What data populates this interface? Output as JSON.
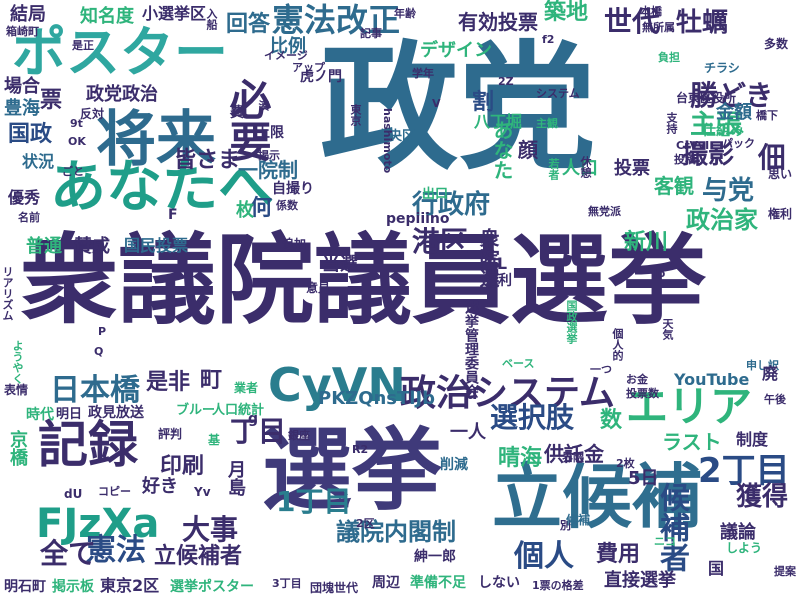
{
  "words": [
    {
      "text": "政党",
      "color": "#2e6b8e"
    },
    {
      "text": "衆議院議員選挙",
      "color": "#3b2d6b"
    },
    {
      "text": "選挙",
      "color": "#3f3a7a"
    },
    {
      "text": "立候補",
      "color": "#2f6e8f"
    },
    {
      "text": "将来",
      "color": "#2e6b8e"
    },
    {
      "text": "あなたへ",
      "color": "#1f9e89"
    },
    {
      "text": "ポスター",
      "color": "#2fa7a0"
    },
    {
      "text": "憲法改正",
      "color": "#2e6b8e"
    },
    {
      "text": "CyVN",
      "color": "#2a7d8e"
    },
    {
      "text": "FJzXa",
      "color": "#1f9e89"
    },
    {
      "text": "記録",
      "color": "#3b2d6b"
    },
    {
      "text": "エリア",
      "color": "#2fb47c"
    },
    {
      "text": "政治システム",
      "color": "#3b2d6b"
    },
    {
      "text": "必要",
      "color": "#3b2d6b"
    },
    {
      "text": "日本橋",
      "color": "#2e6b8e"
    },
    {
      "text": "選択肢",
      "color": "#2a4b85"
    },
    {
      "text": "憲法",
      "color": "#2a4b85"
    },
    {
      "text": "行政府",
      "color": "#2e6b8e"
    },
    {
      "text": "勝どき",
      "color": "#3b2d6b"
    },
    {
      "text": "主張",
      "color": "#2fb47c"
    },
    {
      "text": "撮影",
      "color": "#3b2d6b"
    },
    {
      "text": "与党",
      "color": "#2e6b8e"
    },
    {
      "text": "政治家",
      "color": "#2fb47c"
    },
    {
      "text": "港区",
      "color": "#3b2d6b"
    },
    {
      "text": "新川",
      "color": "#2fb47c"
    },
    {
      "text": "1丁目",
      "color": "#2a7d8e"
    },
    {
      "text": "2丁目",
      "color": "#2a4b85"
    },
    {
      "text": "丁目",
      "color": "#3b2d6b"
    },
    {
      "text": "全て",
      "color": "#3b2d6b"
    },
    {
      "text": "大事",
      "color": "#3b2d6b"
    },
    {
      "text": "印刷",
      "color": "#3b2d6b"
    },
    {
      "text": "個人",
      "color": "#2a4b85"
    },
    {
      "text": "候補者",
      "color": "#2a4b85"
    },
    {
      "text": "獲得",
      "color": "#3b2d6b"
    },
    {
      "text": "費用",
      "color": "#3b2d6b"
    },
    {
      "text": "議院内閣制",
      "color": "#2e6b8e"
    },
    {
      "text": "立候補者",
      "color": "#3b2d6b"
    },
    {
      "text": "世代",
      "color": "#3b2d6b"
    },
    {
      "text": "牡蠣",
      "color": "#3b2d6b"
    },
    {
      "text": "築地",
      "color": "#2fb47c"
    },
    {
      "text": "有効投票",
      "color": "#3b2d6b"
    },
    {
      "text": "皆さま",
      "color": "#3b2d6b"
    },
    {
      "text": "回答",
      "color": "#2e6b8e"
    },
    {
      "text": "一院制",
      "color": "#2e6b8e"
    },
    {
      "text": "比例",
      "color": "#2e6b8e"
    },
    {
      "text": "国政",
      "color": "#2a4b85"
    },
    {
      "text": "政党政治",
      "color": "#3b2d6b"
    },
    {
      "text": "佃",
      "color": "#3b2d6b"
    },
    {
      "text": "顔",
      "color": "#3b2d6b"
    },
    {
      "text": "割",
      "color": "#2a4b85"
    },
    {
      "text": "あなた",
      "color": "#2fb47c"
    },
    {
      "text": "投票",
      "color": "#3b2d6b"
    },
    {
      "text": "人口",
      "color": "#2fb47c"
    },
    {
      "text": "客観",
      "color": "#2fb47c"
    },
    {
      "text": "PKZQnsTlJb",
      "color": "#2e6b8e"
    },
    {
      "text": "衆院選",
      "color": "#3b2d6b"
    },
    {
      "text": "当選",
      "color": "#3b2d6b"
    },
    {
      "text": "一人",
      "color": "#3b2d6b"
    },
    {
      "text": "数",
      "color": "#2fb47c"
    },
    {
      "text": "晴海",
      "color": "#2fb47c"
    },
    {
      "text": "供託金",
      "color": "#3b2d6b"
    },
    {
      "text": "ラスト",
      "color": "#2fb47c"
    },
    {
      "text": "制度",
      "color": "#3b2d6b"
    },
    {
      "text": "YouTube",
      "color": "#2e6b8e"
    },
    {
      "text": "5日",
      "color": "#3b2d6b"
    },
    {
      "text": "議論",
      "color": "#3b2d6b"
    },
    {
      "text": "直接選挙",
      "color": "#3b2d6b"
    },
    {
      "text": "是非",
      "color": "#3b2d6b"
    },
    {
      "text": "町",
      "color": "#3b2d6b"
    },
    {
      "text": "月島",
      "color": "#3b2d6b"
    },
    {
      "text": "好き",
      "color": "#3b2d6b"
    },
    {
      "text": "知名度",
      "color": "#2fb47c"
    },
    {
      "text": "小選挙区",
      "color": "#3b2d6b"
    },
    {
      "text": "結局",
      "color": "#3b2d6b"
    },
    {
      "text": "場合",
      "color": "#3b2d6b"
    },
    {
      "text": "豊海",
      "color": "#2e6b8e"
    },
    {
      "text": "状況",
      "color": "#2e6b8e"
    },
    {
      "text": "優秀",
      "color": "#3b2d6b"
    },
    {
      "text": "普通",
      "color": "#2fb47c"
    },
    {
      "text": "賛成",
      "color": "#3b2d6b"
    },
    {
      "text": "国民投票",
      "color": "#2e6b8e"
    },
    {
      "text": "京橋",
      "color": "#2fb47c"
    },
    {
      "text": "時代",
      "color": "#2fb47c"
    },
    {
      "text": "明日",
      "color": "#3b2d6b"
    },
    {
      "text": "政見放送",
      "color": "#3b2d6b"
    },
    {
      "text": "ブルー",
      "color": "#2fb47c"
    },
    {
      "text": "人口統計",
      "color": "#2fb47c"
    },
    {
      "text": "東京2区",
      "color": "#3b2d6b"
    },
    {
      "text": "選挙ポスター",
      "color": "#2fb47c"
    },
    {
      "text": "掲示板",
      "color": "#2fb47c"
    },
    {
      "text": "明石町",
      "color": "#3b2d6b"
    },
    {
      "text": "団塊世代",
      "color": "#3b2d6b"
    },
    {
      "text": "準備不足",
      "color": "#2fb47c"
    },
    {
      "text": "しない",
      "color": "#3b2d6b"
    },
    {
      "text": "周辺",
      "color": "#3b2d6b"
    },
    {
      "text": "削減",
      "color": "#2e6b8e"
    },
    {
      "text": "紳一郎",
      "color": "#3b2d6b"
    },
    {
      "text": "デザイン",
      "color": "#2fb47c"
    },
    {
      "text": "八丁堀",
      "color": "#2fb47c"
    },
    {
      "text": "不利",
      "color": "#3b2d6b"
    },
    {
      "text": "EL",
      "color": "#3b2d6b"
    },
    {
      "text": "台東区役所",
      "color": "#3b2d6b"
    },
    {
      "text": "金額",
      "color": "#2e6b8e"
    },
    {
      "text": "仕組み",
      "color": "#2fb47c"
    },
    {
      "text": "虎ノ門",
      "color": "#3b2d6b"
    },
    {
      "text": "上限",
      "color": "#3b2d6b"
    },
    {
      "text": "自撮り",
      "color": "#3b2d6b"
    },
    {
      "text": "出口",
      "color": "#2fb47c"
    },
    {
      "text": "pepiiino",
      "color": "#3b2d6b"
    },
    {
      "text": "追加",
      "color": "#3b2d6b"
    },
    {
      "text": "意見",
      "color": "#3b2d6b"
    },
    {
      "text": "中央区",
      "color": "#2e6b8e"
    },
    {
      "text": "反対",
      "color": "#3b2d6b"
    },
    {
      "text": "何",
      "color": "#2a4b85"
    },
    {
      "text": "枚",
      "color": "#2fb47c"
    },
    {
      "text": "票",
      "color": "#3b2d6b"
    },
    {
      "text": "費",
      "color": "#3b2d6b"
    },
    {
      "text": "アップ",
      "color": "#3b2d6b"
    },
    {
      "text": "イメージ",
      "color": "#3b2d6b"
    },
    {
      "text": "入船",
      "color": "#3b2d6b"
    },
    {
      "text": "年齢",
      "color": "#3b2d6b"
    },
    {
      "text": "負担",
      "color": "#2fb47c"
    },
    {
      "text": "チラシ",
      "color": "#2e6b8e"
    },
    {
      "text": "多数",
      "color": "#3b2d6b"
    },
    {
      "text": "本橋",
      "color": "#3b2d6b"
    },
    {
      "text": "無所属",
      "color": "#3b2d6b"
    },
    {
      "text": "記事",
      "color": "#3b2d6b"
    },
    {
      "text": "システム",
      "color": "#3b2d6b"
    },
    {
      "text": "学年",
      "color": "#3b2d6b"
    },
    {
      "text": "橋下",
      "color": "#3b2d6b"
    },
    {
      "text": "支持",
      "color": "#3b2d6b"
    },
    {
      "text": "主観",
      "color": "#2fb47c"
    },
    {
      "text": "CrVvI",
      "color": "#3b2d6b"
    },
    {
      "text": "パック",
      "color": "#3b2d6b"
    },
    {
      "text": "投稿",
      "color": "#3b2d6b"
    },
    {
      "text": "思い",
      "color": "#3b2d6b"
    },
    {
      "text": "権利",
      "color": "#3b2d6b"
    },
    {
      "text": "無党派",
      "color": "#3b2d6b"
    },
    {
      "text": "個人的",
      "color": "#3b2d6b"
    },
    {
      "text": "選挙管理委員会",
      "color": "#3b2d6b"
    },
    {
      "text": "国政選挙",
      "color": "#2fb47c"
    },
    {
      "text": "天気",
      "color": "#3b2d6b"
    },
    {
      "text": "申し訳",
      "color": "#2e6b8e"
    },
    {
      "text": "ベース",
      "color": "#2fb47c"
    },
    {
      "text": "お金",
      "color": "#3b2d6b"
    },
    {
      "text": "投票数",
      "color": "#3b2d6b"
    },
    {
      "text": "ニコ",
      "color": "#2fb47c"
    },
    {
      "text": "午後",
      "color": "#3b2d6b"
    },
    {
      "text": "廃",
      "color": "#3b2d6b"
    },
    {
      "text": "銀座",
      "color": "#3b2d6b"
    },
    {
      "text": "R2",
      "color": "#3b2d6b"
    },
    {
      "text": "界隈",
      "color": "#3b2d6b"
    },
    {
      "text": "2枚",
      "color": "#3b2d6b"
    },
    {
      "text": "業者",
      "color": "#2fb47c"
    },
    {
      "text": "表情",
      "color": "#3b2d6b"
    },
    {
      "text": "評判",
      "color": "#3b2d6b"
    },
    {
      "text": "基",
      "color": "#2fb47c"
    },
    {
      "text": "コピー",
      "color": "#3b2d6b"
    },
    {
      "text": "dU",
      "color": "#3b2d6b"
    },
    {
      "text": "Yv",
      "color": "#3b2d6b"
    },
    {
      "text": "2区",
      "color": "#3b2d6b"
    },
    {
      "text": "3丁目",
      "color": "#3b2d6b"
    },
    {
      "text": "1票の格差",
      "color": "#3b2d6b"
    },
    {
      "text": "提案",
      "color": "#3b2d6b"
    },
    {
      "text": "別",
      "color": "#3b2d6b"
    },
    {
      "text": "候補",
      "color": "#2e6b8e"
    },
    {
      "text": "しよう",
      "color": "#2fb47c"
    },
    {
      "text": "国",
      "color": "#3b2d6b"
    },
    {
      "text": "箱崎町",
      "color": "#3b2d6b"
    },
    {
      "text": "是正",
      "color": "#3b2d6b"
    },
    {
      "text": "名前",
      "color": "#3b2d6b"
    },
    {
      "text": "リアリズム",
      "color": "#3b2d6b"
    },
    {
      "text": "ようやく",
      "color": "#2fb47c"
    },
    {
      "text": "係数",
      "color": "#3b2d6b"
    },
    {
      "text": "東京",
      "color": "#3b2d6b"
    },
    {
      "text": "湊",
      "color": "#3b2d6b"
    },
    {
      "text": "ごと",
      "color": "#3b2d6b"
    },
    {
      "text": "揭示",
      "color": "#3b2d6b"
    },
    {
      "text": "hashimoto",
      "color": "#3b2d6b"
    },
    {
      "text": "若者",
      "color": "#2fb47c"
    },
    {
      "text": "休憩",
      "color": "#3b2d6b"
    },
    {
      "text": "OK",
      "color": "#3b2d6b"
    },
    {
      "text": "9t",
      "color": "#3b2d6b"
    },
    {
      "text": "F",
      "color": "#3b2d6b"
    },
    {
      "text": "U",
      "color": "#3b2d6b"
    },
    {
      "text": "g",
      "color": "#3b2d6b"
    },
    {
      "text": "d",
      "color": "#3b2d6b"
    },
    {
      "text": "V",
      "color": "#3b2d6b"
    },
    {
      "text": "P",
      "color": "#3b2d6b"
    },
    {
      "text": "Q",
      "color": "#3b2d6b"
    },
    {
      "text": "lo",
      "color": "#3b2d6b"
    },
    {
      "text": "2Z",
      "color": "#3b2d6b"
    },
    {
      "text": "f2",
      "color": "#3b2d6b"
    },
    {
      "text": "一つ",
      "color": "#3b2d6b"
    },
    {
      "text": "人口",
      "color": "#3b2d6b"
    }
  ]
}
